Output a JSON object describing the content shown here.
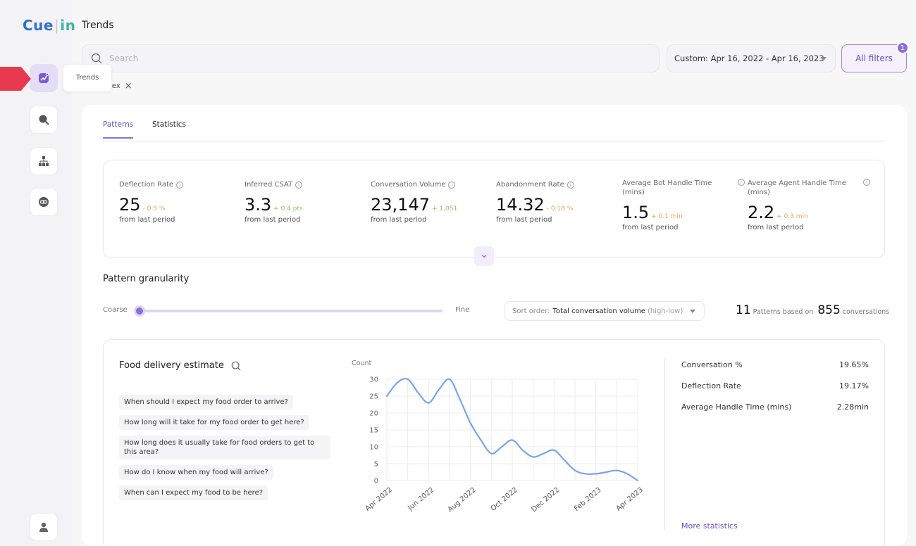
{
  "app": {
    "logo": {
      "cue": "Cue",
      "in": "in"
    },
    "page_title": "Trends",
    "tooltip": "Trends"
  },
  "sidebar": {
    "items": [
      {
        "name": "trends",
        "icon": "trends-icon",
        "active": true
      },
      {
        "name": "search",
        "icon": "search-icon",
        "active": false
      },
      {
        "name": "hierarchy",
        "icon": "hierarchy-icon",
        "active": false
      },
      {
        "name": "integrations",
        "icon": "link-icon",
        "active": false
      }
    ],
    "profile_icon": "user-icon"
  },
  "header": {
    "search_placeholder": "Search",
    "date_range": "Custom: Apr 16, 2022 - Apr 16, 2023",
    "all_filters_label": "All filters",
    "filter_count": "1",
    "chip_label": "lex"
  },
  "tabs": [
    {
      "label": "Patterns",
      "active": true
    },
    {
      "label": "Statistics",
      "active": false
    }
  ],
  "metrics": [
    {
      "label": "Deflection Rate",
      "value": "25",
      "delta": "- 0.5 %",
      "delta_color": "orange",
      "sub": "from last period"
    },
    {
      "label": "Inferred CSAT",
      "value": "3.3",
      "delta": "+ 0.4 pts",
      "delta_color": "green",
      "sub": "from last period"
    },
    {
      "label": "Conversation Volume",
      "value": "23,147",
      "delta": "+ 1,051",
      "delta_color": "green",
      "sub": "from last period"
    },
    {
      "label": "Abandonment Rate",
      "value": "14.32",
      "delta": "- 0.18 %",
      "delta_color": "orange",
      "sub": "from last period"
    },
    {
      "label": "Average Bot Handle Time (mins)",
      "value": "1.5",
      "delta": "+ 0.1 min",
      "delta_color": "orange",
      "sub": "from last period"
    },
    {
      "label": "Average Agent Handle Time (mins)",
      "value": "2.2",
      "delta": "+ 0.3 min",
      "delta_color": "orange",
      "sub": "from last period"
    }
  ],
  "granularity": {
    "title": "Pattern granularity",
    "coarse_label": "Coarse",
    "fine_label": "Fine",
    "level": 0
  },
  "sort": {
    "label": "Sort order:",
    "value": "Total conversation volume",
    "note": "(high-low)"
  },
  "patterns_summary": {
    "count": "11",
    "mid_text": "Patterns based on",
    "conversations": "855",
    "end_text": "conversations"
  },
  "pattern": {
    "title": "Food delivery estimate",
    "phrases": [
      "When should I expect my food order to arrive?",
      "How long will it take for my food order to get here?",
      "How long does it usually take for food orders to get to this area?",
      "How do I know when my food will arrive?",
      "When can I expect my food to be here?"
    ],
    "stats": [
      {
        "label": "Conversation %",
        "value": "19.65%"
      },
      {
        "label": "Deflection Rate",
        "value": "19.17%"
      },
      {
        "label": "Average Handle Time (mins)",
        "value": "2.28min"
      }
    ],
    "more_label": "More statistics"
  },
  "chart_data": {
    "type": "line",
    "ylabel": "Count",
    "ylim": [
      0,
      30
    ],
    "yticks": [
      0,
      5,
      10,
      15,
      20,
      25,
      30
    ],
    "xticks": [
      "Apr 2022",
      "Jun 2022",
      "Aug 2022",
      "Oct 2022",
      "Dec 2022",
      "Feb 2023",
      "Apr 2023"
    ],
    "grid": true,
    "color": "#7aa4ec",
    "x": [
      0,
      0.5,
      1,
      1.5,
      2,
      2.5,
      3,
      3.5,
      4,
      4.5,
      5,
      5.5,
      6,
      6.5,
      7,
      7.5,
      8,
      8.5,
      9,
      9.5,
      10,
      10.5,
      11,
      11.5,
      12
    ],
    "values": [
      25,
      29,
      30,
      26,
      23,
      27,
      30,
      24,
      17,
      12,
      8,
      10,
      12,
      9,
      7,
      8,
      9,
      6,
      3,
      2,
      2,
      2.5,
      3,
      2,
      0
    ]
  }
}
